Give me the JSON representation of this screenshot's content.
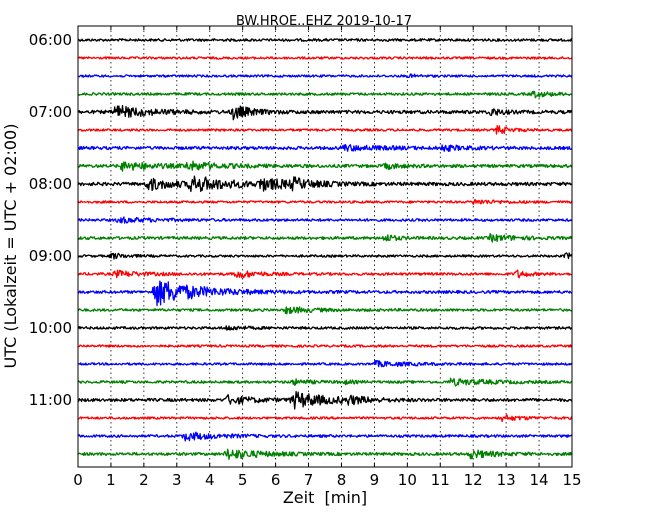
{
  "chart_data": {
    "type": "line",
    "title": "BW.HROE..EHZ 2019-10-17",
    "xlabel": "Zeit  [min]",
    "ylabel": "UTC (Lokalzeit = UTC + 02:00)",
    "xlim": [
      0,
      15
    ],
    "x_ticks": [
      0,
      1,
      2,
      3,
      4,
      5,
      6,
      7,
      8,
      9,
      10,
      11,
      12,
      13,
      14,
      15
    ],
    "x_tick_labels": [
      "0",
      "1",
      "2",
      "3",
      "4",
      "5",
      "6",
      "7",
      "8",
      "9",
      "10",
      "11",
      "12",
      "13",
      "14",
      "15"
    ],
    "grid_x": true,
    "y_tick_labels": [
      "06:00",
      "07:00",
      "08:00",
      "09:00",
      "10:00",
      "11:00"
    ],
    "trace_interval_minutes": 15,
    "traces_per_hour": 4,
    "colors": [
      "#000000",
      "#ff0000",
      "#0000ff",
      "#008000"
    ],
    "series": [
      {
        "start": "06:00",
        "noise": 0.9,
        "events": []
      },
      {
        "start": "06:15",
        "noise": 0.8,
        "events": []
      },
      {
        "start": "06:30",
        "noise": 0.8,
        "events": [
          {
            "t": 10.0,
            "amp": 1.5,
            "dur": 0.3
          }
        ]
      },
      {
        "start": "06:45",
        "noise": 0.9,
        "events": [
          {
            "t": 13.8,
            "amp": 3,
            "dur": 0.5
          }
        ]
      },
      {
        "start": "07:00",
        "noise": 1.2,
        "events": [
          {
            "t": 1.1,
            "amp": 6,
            "dur": 1.0
          },
          {
            "t": 4.7,
            "amp": 7,
            "dur": 0.5
          },
          {
            "t": 12.5,
            "amp": 4,
            "dur": 0.3
          }
        ]
      },
      {
        "start": "07:15",
        "noise": 0.8,
        "events": [
          {
            "t": 12.7,
            "amp": 4,
            "dur": 0.4
          }
        ]
      },
      {
        "start": "07:30",
        "noise": 1.1,
        "events": [
          {
            "t": 8.0,
            "amp": 2.5,
            "dur": 1.2
          },
          {
            "t": 11.0,
            "amp": 2.5,
            "dur": 0.6
          }
        ]
      },
      {
        "start": "07:45",
        "noise": 1.1,
        "events": [
          {
            "t": 1.3,
            "amp": 4,
            "dur": 1.0
          },
          {
            "t": 3.3,
            "amp": 3.5,
            "dur": 1.0
          },
          {
            "t": 9.3,
            "amp": 2.5,
            "dur": 0.5
          }
        ]
      },
      {
        "start": "08:00",
        "noise": 1.2,
        "events": [
          {
            "t": 2.1,
            "amp": 6,
            "dur": 0.8
          },
          {
            "t": 3.4,
            "amp": 7,
            "dur": 1.2
          },
          {
            "t": 5.5,
            "amp": 5,
            "dur": 1.0
          },
          {
            "t": 6.5,
            "amp": 4,
            "dur": 0.5
          }
        ]
      },
      {
        "start": "08:15",
        "noise": 0.8,
        "events": [
          {
            "t": 12.0,
            "amp": 2,
            "dur": 0.8
          }
        ]
      },
      {
        "start": "08:30",
        "noise": 0.9,
        "events": [
          {
            "t": 1.2,
            "amp": 2.5,
            "dur": 1.0
          }
        ]
      },
      {
        "start": "08:45",
        "noise": 1.0,
        "events": [
          {
            "t": 9.3,
            "amp": 4,
            "dur": 0.3
          },
          {
            "t": 12.5,
            "amp": 3,
            "dur": 0.8
          }
        ]
      },
      {
        "start": "09:00",
        "noise": 0.8,
        "events": [
          {
            "t": 1.0,
            "amp": 3,
            "dur": 0.4
          },
          {
            "t": 14.8,
            "amp": 3,
            "dur": 0.3
          }
        ]
      },
      {
        "start": "09:15",
        "noise": 0.9,
        "events": [
          {
            "t": 1.1,
            "amp": 3,
            "dur": 0.8
          },
          {
            "t": 4.8,
            "amp": 4,
            "dur": 0.6
          },
          {
            "t": 13.3,
            "amp": 4,
            "dur": 0.3
          }
        ]
      },
      {
        "start": "09:30",
        "noise": 1.0,
        "events": [
          {
            "t": 2.3,
            "amp": 14,
            "dur": 1.2
          }
        ]
      },
      {
        "start": "09:45",
        "noise": 0.9,
        "events": [
          {
            "t": 6.3,
            "amp": 3,
            "dur": 0.8
          }
        ]
      },
      {
        "start": "10:00",
        "noise": 0.9,
        "events": [
          {
            "t": 4.5,
            "amp": 2,
            "dur": 0.5
          }
        ]
      },
      {
        "start": "10:15",
        "noise": 0.8,
        "events": []
      },
      {
        "start": "10:30",
        "noise": 0.8,
        "events": [
          {
            "t": 9.0,
            "amp": 2.5,
            "dur": 1.0
          }
        ]
      },
      {
        "start": "10:45",
        "noise": 0.9,
        "events": [
          {
            "t": 6.5,
            "amp": 2.5,
            "dur": 0.5
          },
          {
            "t": 8.0,
            "amp": 2,
            "dur": 0.3
          },
          {
            "t": 11.3,
            "amp": 3,
            "dur": 1.2
          }
        ]
      },
      {
        "start": "11:00",
        "noise": 1.1,
        "events": [
          {
            "t": 4.5,
            "amp": 4,
            "dur": 0.8
          },
          {
            "t": 6.5,
            "amp": 8,
            "dur": 1.0
          },
          {
            "t": 8.2,
            "amp": 3,
            "dur": 0.5
          }
        ]
      },
      {
        "start": "11:15",
        "noise": 0.8,
        "events": [
          {
            "t": 12.8,
            "amp": 3,
            "dur": 0.6
          }
        ]
      },
      {
        "start": "11:30",
        "noise": 0.9,
        "events": [
          {
            "t": 3.2,
            "amp": 4,
            "dur": 1.0
          }
        ]
      },
      {
        "start": "11:45",
        "noise": 1.0,
        "events": [
          {
            "t": 4.5,
            "amp": 5,
            "dur": 1.0
          },
          {
            "t": 11.9,
            "amp": 4,
            "dur": 0.7
          }
        ]
      }
    ]
  }
}
